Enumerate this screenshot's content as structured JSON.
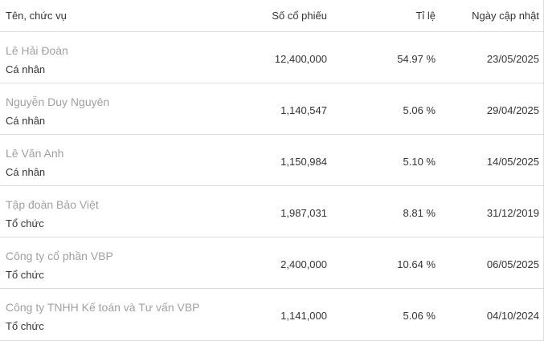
{
  "header": {
    "name_role": "Tên, chức vụ",
    "shares": "Số cổ phiếu",
    "ratio": "Tỉ lệ",
    "updated": "Ngày cập nhật"
  },
  "rows": [
    {
      "name": "Lê Hải Đoàn",
      "role": "Cá nhân",
      "shares": "12,400,000",
      "ratio": "54.97 %",
      "date": "23/05/2025"
    },
    {
      "name": "Nguyễn Duy Nguyên",
      "role": "Cá nhân",
      "shares": "1,140,547",
      "ratio": "5.06 %",
      "date": "29/04/2025"
    },
    {
      "name": "Lê Văn Anh",
      "role": "Cá nhân",
      "shares": "1,150,984",
      "ratio": "5.10 %",
      "date": "14/05/2025"
    },
    {
      "name": "Tập đoàn Bảo Việt",
      "role": "Tổ chức",
      "shares": "1,987,031",
      "ratio": "8.81 %",
      "date": "31/12/2019"
    },
    {
      "name": "Công ty cổ phần VBP",
      "role": "Tổ chức",
      "shares": "2,400,000",
      "ratio": "10.64 %",
      "date": "06/05/2025"
    },
    {
      "name": "Công ty TNHH Kế toán và Tư vấn VBP",
      "role": "Tổ chức",
      "shares": "1,141,000",
      "ratio": "5.06 %",
      "date": "04/10/2024"
    }
  ],
  "colors": {
    "name_text": "#a0a0a0",
    "body_text": "#333333",
    "divider": "#dcdcdc"
  }
}
